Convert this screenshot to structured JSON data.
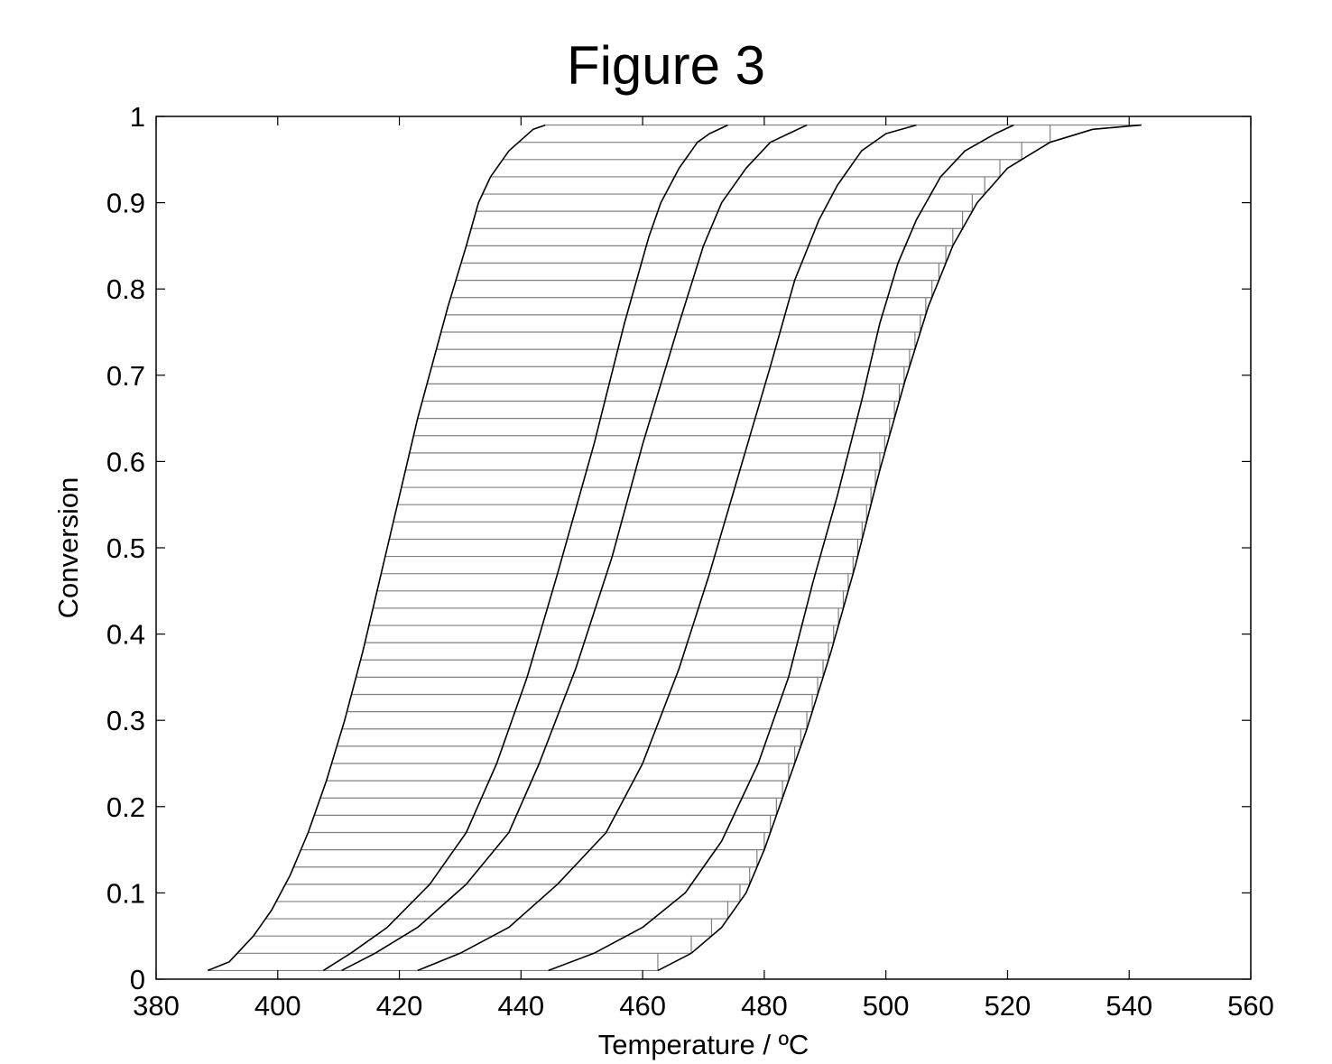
{
  "figure_label": "Figure 3",
  "chart_data": {
    "type": "line",
    "title": "",
    "xlabel": "Temperature / ºC",
    "ylabel": "Conversion",
    "xlim": [
      380,
      560
    ],
    "ylim": [
      0,
      1
    ],
    "xticks": [
      "380",
      "400",
      "420",
      "440",
      "460",
      "480",
      "500",
      "520",
      "540",
      "560"
    ],
    "yticks": [
      "0",
      "0.1",
      "0.2",
      "0.3",
      "0.4",
      "0.5",
      "0.6",
      "0.7",
      "0.8",
      "0.9",
      "1"
    ],
    "grid": false,
    "legend": "none",
    "line_color": "#000000",
    "step_color": "#808080",
    "step_y_levels": {
      "start": 0.01,
      "stop": 0.99,
      "step": 0.02
    },
    "series": [
      {
        "x": [
          388.5,
          392,
          396,
          399,
          402,
          405,
          408,
          411,
          414,
          418,
          423,
          428,
          431,
          433,
          435,
          438,
          442,
          444
        ],
        "y": [
          0.01,
          0.02,
          0.05,
          0.08,
          0.12,
          0.17,
          0.23,
          0.3,
          0.38,
          0.5,
          0.65,
          0.78,
          0.85,
          0.9,
          0.93,
          0.96,
          0.985,
          0.99
        ]
      },
      {
        "x": [
          407.5,
          412,
          418,
          425,
          431,
          436,
          441,
          446,
          452,
          457,
          461,
          463,
          466,
          469,
          471,
          474
        ],
        "y": [
          0.01,
          0.03,
          0.06,
          0.11,
          0.17,
          0.25,
          0.35,
          0.47,
          0.62,
          0.76,
          0.86,
          0.9,
          0.94,
          0.97,
          0.98,
          0.99
        ]
      },
      {
        "x": [
          410.5,
          416,
          423,
          431,
          438,
          443,
          449,
          455,
          460,
          466,
          470,
          473,
          477,
          481,
          484,
          487
        ],
        "y": [
          0.01,
          0.03,
          0.06,
          0.11,
          0.17,
          0.25,
          0.36,
          0.49,
          0.62,
          0.76,
          0.85,
          0.9,
          0.94,
          0.97,
          0.98,
          0.99
        ]
      },
      {
        "x": [
          423,
          430,
          438,
          446,
          454,
          460,
          466,
          471,
          476,
          481,
          485,
          489,
          492,
          496,
          500,
          505
        ],
        "y": [
          0.01,
          0.03,
          0.06,
          0.11,
          0.17,
          0.25,
          0.36,
          0.47,
          0.59,
          0.71,
          0.81,
          0.88,
          0.92,
          0.96,
          0.98,
          0.99
        ]
      },
      {
        "x": [
          444.5,
          452,
          460,
          467,
          473,
          479,
          484,
          488,
          492,
          496,
          499,
          502,
          505,
          509,
          513,
          518,
          521
        ],
        "y": [
          0.01,
          0.03,
          0.06,
          0.1,
          0.16,
          0.25,
          0.35,
          0.46,
          0.56,
          0.67,
          0.76,
          0.83,
          0.88,
          0.93,
          0.96,
          0.98,
          0.99
        ]
      },
      {
        "x": [
          462.5,
          468,
          473,
          477,
          480,
          483,
          487,
          491,
          495,
          499,
          503,
          507,
          511,
          515,
          520,
          527,
          534,
          542
        ],
        "y": [
          0.01,
          0.03,
          0.06,
          0.1,
          0.15,
          0.21,
          0.29,
          0.38,
          0.48,
          0.59,
          0.69,
          0.78,
          0.85,
          0.9,
          0.94,
          0.97,
          0.985,
          0.99
        ]
      }
    ]
  }
}
